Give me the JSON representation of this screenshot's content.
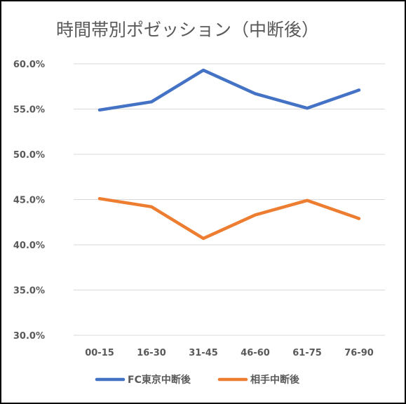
{
  "chart_data": {
    "type": "line",
    "title": "時間帯別ポゼッション（中断後）",
    "categories": [
      "00-15",
      "16-30",
      "31-45",
      "46-60",
      "61-75",
      "76-90"
    ],
    "series": [
      {
        "name": "FC東京中断後",
        "color": "#4472c4",
        "values": [
          54.9,
          55.8,
          59.3,
          56.7,
          55.1,
          57.1
        ]
      },
      {
        "name": "相手中断後",
        "color": "#ed7d31",
        "values": [
          45.1,
          44.2,
          40.7,
          43.3,
          44.9,
          42.9
        ]
      }
    ],
    "yticks": [
      "60.0%",
      "55.0%",
      "50.0%",
      "45.0%",
      "40.0%",
      "35.0%",
      "30.0%"
    ],
    "ylim": [
      30,
      60
    ],
    "grid": true,
    "legend": "bottom"
  }
}
